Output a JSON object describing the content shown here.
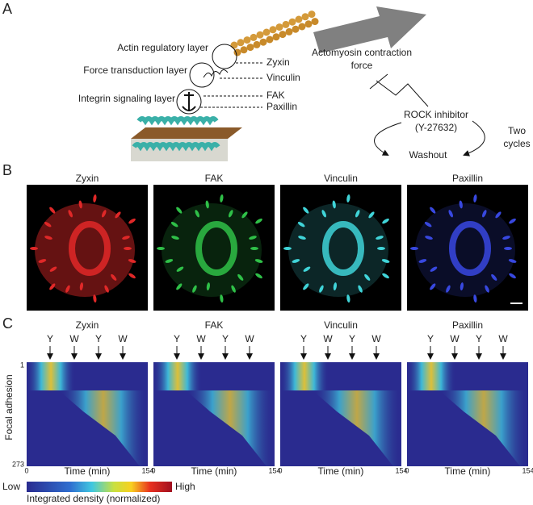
{
  "panel_labels": [
    "A",
    "B",
    "C"
  ],
  "schematic": {
    "layers": [
      "Actin regulatory layer",
      "Force transduction layer",
      "Integrin signaling layer"
    ],
    "proteins": [
      "Zyxin",
      "Vinculin",
      "FAK",
      "Paxillin"
    ],
    "force": [
      "Actomyosin contraction",
      "force"
    ],
    "inhibitor": [
      "ROCK inhibitor",
      "(Y-27632)"
    ],
    "washout": "Washout",
    "cycles": [
      "Two",
      "cycles"
    ]
  },
  "images": {
    "titles": [
      "Zyxin",
      "FAK",
      "Vinculin",
      "Paxillin"
    ]
  },
  "heatmaps": {
    "titles": [
      "Zyxin",
      "FAK",
      "Vinculin",
      "Paxillin"
    ],
    "markers": [
      "Y",
      "W",
      "Y",
      "W"
    ],
    "y_label": "Focal adhesion",
    "y_start": "1",
    "y_end": "273",
    "x_start": "0",
    "x_end": "154",
    "x_label": "Time (min)"
  },
  "colorbar": {
    "low": "Low",
    "high": "High",
    "label": "Integrated density (normalized)"
  }
}
